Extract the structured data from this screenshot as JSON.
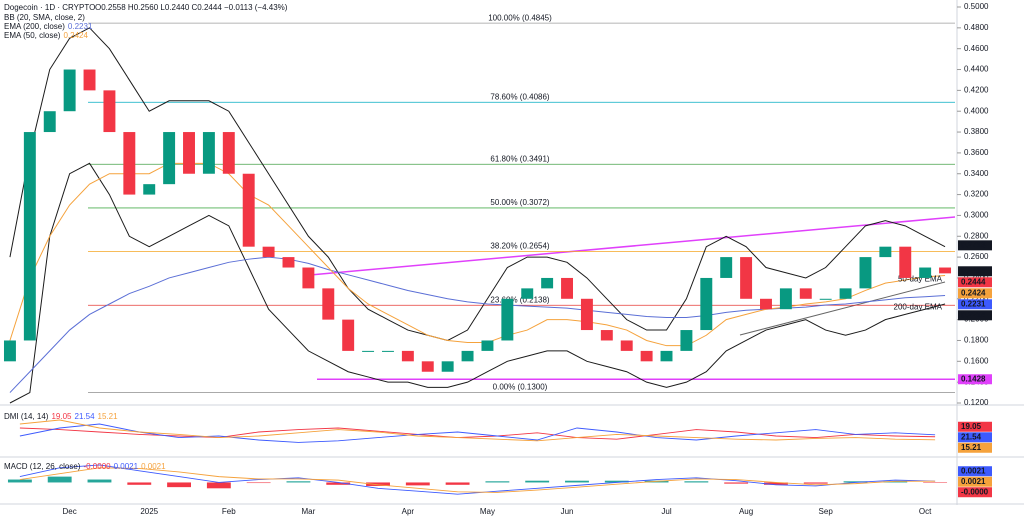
{
  "chart_data": [
    {
      "type": "candlestick",
      "title": "Dogecoin · 1D · CRYPTO",
      "ohlc_text": "O0.2558 H0.2560 L0.2440 C0.2444 −0.0113 (−4.43%)",
      "categories": [
        null,
        null,
        null,
        "Dec",
        null,
        null,
        null,
        "2025",
        null,
        null,
        null,
        "Feb",
        null,
        null,
        null,
        "Mar",
        null,
        null,
        null,
        null,
        "Apr",
        null,
        null,
        null,
        "May",
        null,
        null,
        null,
        "Jun",
        null,
        null,
        null,
        null,
        "Jul",
        null,
        null,
        null,
        "Aug",
        null,
        null,
        null,
        "Sep",
        null,
        null,
        null,
        null,
        "Oct",
        null
      ],
      "open": [
        0.16,
        0.18,
        0.38,
        0.4,
        0.44,
        0.42,
        0.38,
        0.32,
        0.33,
        0.38,
        0.34,
        0.38,
        0.34,
        0.27,
        0.26,
        0.25,
        0.23,
        0.2,
        0.17,
        0.17,
        0.17,
        0.16,
        0.15,
        0.16,
        0.17,
        0.18,
        0.22,
        0.23,
        0.24,
        0.22,
        0.19,
        0.18,
        0.17,
        0.16,
        0.17,
        0.19,
        0.24,
        0.26,
        0.22,
        0.21,
        0.23,
        0.22,
        0.22,
        0.23,
        0.26,
        0.27,
        0.24,
        0.25
      ],
      "close": [
        0.18,
        0.38,
        0.4,
        0.44,
        0.42,
        0.38,
        0.32,
        0.33,
        0.38,
        0.34,
        0.38,
        0.34,
        0.27,
        0.26,
        0.25,
        0.23,
        0.2,
        0.17,
        0.17,
        0.17,
        0.16,
        0.15,
        0.16,
        0.17,
        0.18,
        0.22,
        0.23,
        0.24,
        0.22,
        0.19,
        0.18,
        0.17,
        0.16,
        0.17,
        0.19,
        0.24,
        0.26,
        0.22,
        0.21,
        0.23,
        0.22,
        0.22,
        0.23,
        0.26,
        0.27,
        0.24,
        0.25,
        0.2444
      ],
      "up_color": "#089981",
      "down_color": "#f23645",
      "indicators": [
        {
          "name": "BB (20, SMA, close, 2)",
          "color": "#1b1b1b",
          "upper": [
            0.26,
            0.36,
            0.44,
            0.47,
            0.48,
            0.46,
            0.43,
            0.4,
            0.41,
            0.41,
            0.41,
            0.4,
            0.37,
            0.34,
            0.31,
            0.28,
            0.26,
            0.23,
            0.21,
            0.2,
            0.19,
            0.185,
            0.18,
            0.19,
            0.22,
            0.25,
            0.26,
            0.26,
            0.255,
            0.24,
            0.22,
            0.2,
            0.19,
            0.19,
            0.22,
            0.27,
            0.28,
            0.27,
            0.25,
            0.245,
            0.24,
            0.25,
            0.27,
            0.29,
            0.295,
            0.29,
            0.28,
            0.27
          ],
          "lower": [
            0.12,
            0.13,
            0.28,
            0.34,
            0.35,
            0.32,
            0.28,
            0.27,
            0.28,
            0.29,
            0.3,
            0.29,
            0.25,
            0.21,
            0.19,
            0.17,
            0.16,
            0.15,
            0.145,
            0.14,
            0.14,
            0.135,
            0.135,
            0.14,
            0.15,
            0.16,
            0.165,
            0.17,
            0.17,
            0.16,
            0.155,
            0.15,
            0.14,
            0.135,
            0.14,
            0.15,
            0.17,
            0.18,
            0.19,
            0.195,
            0.2,
            0.19,
            0.185,
            0.19,
            0.2,
            0.205,
            0.21,
            0.215
          ]
        },
        {
          "name": "EMA (200, close)",
          "value": 0.2231,
          "color": "#5b6fd6",
          "tag": "200-day EMA",
          "values": [
            0.13,
            0.15,
            0.17,
            0.19,
            0.205,
            0.215,
            0.225,
            0.232,
            0.24,
            0.245,
            0.25,
            0.255,
            0.258,
            0.26,
            0.258,
            0.254,
            0.248,
            0.243,
            0.238,
            0.233,
            0.228,
            0.224,
            0.22,
            0.217,
            0.215,
            0.214,
            0.213,
            0.212,
            0.211,
            0.209,
            0.207,
            0.205,
            0.203,
            0.202,
            0.202,
            0.204,
            0.207,
            0.209,
            0.21,
            0.211,
            0.212,
            0.214,
            0.215,
            0.217,
            0.219,
            0.221,
            0.222,
            0.2231
          ]
        },
        {
          "name": "EMA (50, close)",
          "value": 0.2424,
          "color": "#f5a23c",
          "tag": "50-day EMA",
          "values": [
            0.18,
            0.24,
            0.28,
            0.31,
            0.33,
            0.34,
            0.34,
            0.34,
            0.35,
            0.35,
            0.35,
            0.34,
            0.32,
            0.31,
            0.29,
            0.27,
            0.25,
            0.23,
            0.215,
            0.205,
            0.195,
            0.185,
            0.18,
            0.178,
            0.178,
            0.185,
            0.19,
            0.2,
            0.2,
            0.198,
            0.195,
            0.19,
            0.18,
            0.175,
            0.175,
            0.185,
            0.2,
            0.205,
            0.21,
            0.212,
            0.215,
            0.217,
            0.22,
            0.228,
            0.235,
            0.238,
            0.241,
            0.2424
          ]
        }
      ],
      "fib_levels": [
        {
          "label": "100.00% (0.4845)",
          "value": 0.4845,
          "color": "#9e9e9e"
        },
        {
          "label": "78.60% (0.4086)",
          "value": 0.4086,
          "color": "#00acc1"
        },
        {
          "label": "61.80% (0.3491)",
          "value": 0.3491,
          "color": "#43a047"
        },
        {
          "label": "50.00% (0.3072)",
          "value": 0.3072,
          "color": "#4caf50"
        },
        {
          "label": "38.20% (0.2654)",
          "value": 0.2654,
          "color": "#f5a623"
        },
        {
          "label": "23.60% (0.2138)",
          "value": 0.2138,
          "color": "#e53935"
        },
        {
          "label": "0.00% (0.1300)",
          "value": 0.13,
          "color": "#9e9e9e"
        }
      ],
      "price_tags": [
        {
          "value": 0.2713,
          "color": "#131722"
        },
        {
          "value": 0.2464,
          "color": "#131722"
        },
        {
          "value": 0.2444,
          "color": "#f23645"
        },
        {
          "value": 0.2424,
          "color": "#f5a23c"
        },
        {
          "value": 0.2231,
          "color": "#3d5afe"
        },
        {
          "value": 0.2214,
          "color": "#131722"
        },
        {
          "value": 0.1428,
          "color": "#e040fb"
        }
      ],
      "ylim": [
        0.12,
        0.5
      ],
      "yticks": [
        {
          "value": 0.5,
          "label": "0.5000"
        },
        {
          "value": 0.48,
          "label": "0.4800"
        },
        {
          "value": 0.46,
          "label": "0.4600"
        },
        {
          "value": 0.44,
          "label": "0.4400"
        },
        {
          "value": 0.42,
          "label": "0.4200"
        },
        {
          "value": 0.4,
          "label": "0.4000"
        },
        {
          "value": 0.38,
          "label": "0.3800"
        },
        {
          "value": 0.36,
          "label": "0.3600"
        },
        {
          "value": 0.34,
          "label": "0.3400"
        },
        {
          "value": 0.32,
          "label": "0.3200"
        },
        {
          "value": 0.3,
          "label": "0.3000"
        },
        {
          "value": 0.28,
          "label": "0.2800"
        },
        {
          "value": 0.26,
          "label": "0.2600"
        },
        {
          "value": 0.24,
          "label": "0.2400"
        },
        {
          "value": 0.22,
          "label": "0.2200"
        },
        {
          "value": 0.2,
          "label": "0.2000"
        },
        {
          "value": 0.18,
          "label": "0.1800"
        },
        {
          "value": 0.16,
          "label": "0.1600"
        },
        {
          "value": 0.14,
          "label": "0.1400"
        },
        {
          "value": 0.12,
          "label": "0.1200"
        }
      ]
    },
    {
      "type": "line",
      "title": "DMI (14, 14)",
      "ylim": [
        0,
        50
      ],
      "series": [
        {
          "color": "#f23645",
          "values": [
            30,
            28,
            25,
            22,
            20,
            18,
            25,
            28,
            30,
            26,
            22,
            18,
            20,
            24,
            18,
            16,
            22,
            28,
            25,
            20,
            18,
            22,
            20,
            19.05
          ]
        },
        {
          "color": "#3d5afe",
          "values": [
            20,
            30,
            35,
            25,
            18,
            20,
            15,
            12,
            14,
            18,
            22,
            25,
            20,
            15,
            30,
            25,
            18,
            15,
            20,
            24,
            28,
            22,
            24,
            21.54
          ]
        },
        {
          "color": "#f5a23c",
          "values": [
            35,
            40,
            30,
            25,
            22,
            18,
            20,
            24,
            28,
            25,
            20,
            18,
            16,
            14,
            18,
            22,
            20,
            18,
            16,
            15,
            17,
            18,
            16,
            15.21
          ]
        }
      ]
    },
    {
      "type": "macd",
      "title": "MACD (12, 26, close)",
      "ylim": [
        -0.03,
        0.035
      ],
      "histogram": {
        "color": "#26a69a",
        "neg_color": "#f23645",
        "values": [
          0.005,
          0.01,
          0.005,
          -0.004,
          -0.008,
          -0.01,
          -0.001,
          0.002,
          -0.004,
          -0.006,
          -0.005,
          -0.004,
          0.002,
          0.003,
          0.003,
          0.003,
          0.003,
          0.002,
          -0.002,
          -0.004,
          -0.002,
          0.002,
          0.002,
          -4e-05
        ],
        "value_label": "-0.0000"
      },
      "series": [
        {
          "color": "#3d5afe",
          "values": [
            0.01,
            0.025,
            0.03,
            0.02,
            0.01,
            0.0,
            0.005,
            0.008,
            0.0,
            -0.01,
            -0.015,
            -0.02,
            -0.015,
            -0.01,
            -0.005,
            0.0,
            0.005,
            0.008,
            0.003,
            -0.004,
            -0.006,
            0.0,
            0.004,
            0.0021
          ]
        },
        {
          "color": "#f5a23c",
          "values": [
            0.005,
            0.015,
            0.025,
            0.024,
            0.018,
            0.01,
            0.006,
            0.006,
            0.004,
            -0.004,
            -0.01,
            -0.016,
            -0.017,
            -0.013,
            -0.008,
            -0.003,
            0.002,
            0.006,
            0.005,
            0.0,
            -0.004,
            -0.002,
            0.002,
            0.0021
          ]
        }
      ]
    }
  ]
}
